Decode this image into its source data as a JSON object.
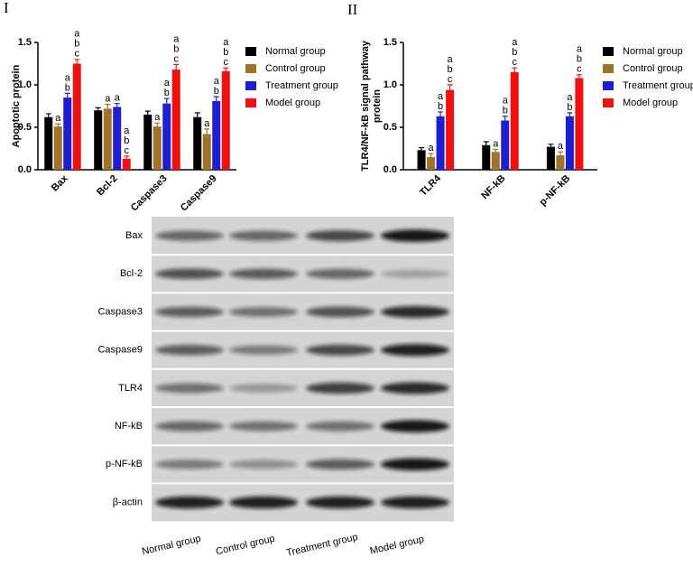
{
  "chart_data": [
    {
      "type": "bar",
      "panel": "I",
      "ylabel": [
        "Apoptotic protein"
      ],
      "categories": [
        "Bax",
        "Bcl-2",
        "Caspase3",
        "Caspase9"
      ],
      "ylim": [
        0,
        1.5
      ],
      "yticks": [
        {
          "value": 0,
          "label": "0.0"
        },
        {
          "value": 0.5,
          "label": "0.5"
        },
        {
          "value": 1,
          "label": "1.0"
        },
        {
          "value": 1.5,
          "label": "1.5"
        }
      ],
      "series": [
        {
          "name": "Normal group",
          "color": "#000000",
          "values": [
            0.62,
            0.7,
            0.65,
            0.62
          ],
          "errors": [
            0.04,
            0.03,
            0.04,
            0.05
          ],
          "letters": [
            null,
            null,
            null,
            null
          ]
        },
        {
          "name": "Control group",
          "color": "#a0732a",
          "values": [
            0.51,
            0.72,
            0.51,
            0.42
          ],
          "errors": [
            0.03,
            0.05,
            0.04,
            0.06
          ],
          "letters": [
            [
              "a"
            ],
            [
              "a"
            ],
            [
              "a"
            ],
            [
              "a"
            ]
          ]
        },
        {
          "name": "Treatment group",
          "color": "#1f1fd0",
          "values": [
            0.85,
            0.74,
            0.78,
            0.81
          ],
          "errors": [
            0.05,
            0.04,
            0.06,
            0.05
          ],
          "letters": [
            [
              "a",
              "b"
            ],
            [
              "a"
            ],
            [
              "a",
              "b"
            ],
            [
              "a",
              "b"
            ]
          ]
        },
        {
          "name": "Model group",
          "color": "#f01010",
          "values": [
            1.25,
            0.13,
            1.18,
            1.16
          ],
          "errors": [
            0.05,
            0.03,
            0.06,
            0.04
          ],
          "letters": [
            [
              "a",
              "b",
              "c"
            ],
            [
              "a",
              "b",
              "c"
            ],
            [
              "a",
              "b",
              "c"
            ],
            [
              "a",
              "b",
              "c"
            ]
          ]
        }
      ]
    },
    {
      "type": "bar",
      "panel": "II",
      "ylabel": [
        "TLR4/NF-kB signal pathway",
        "protein"
      ],
      "categories": [
        "TLR4",
        "NF-kB",
        "p-NF-kB"
      ],
      "ylim": [
        0,
        1.5
      ],
      "yticks": [
        {
          "value": 0,
          "label": "0.0"
        },
        {
          "value": 0.5,
          "label": "0.5"
        },
        {
          "value": 1,
          "label": "1.0"
        },
        {
          "value": 1.5,
          "label": "1.5"
        }
      ],
      "series": [
        {
          "name": "Normal group",
          "color": "#000000",
          "values": [
            0.23,
            0.29,
            0.27
          ],
          "errors": [
            0.03,
            0.04,
            0.03
          ],
          "letters": [
            null,
            null,
            null
          ]
        },
        {
          "name": "Control group",
          "color": "#a0732a",
          "values": [
            0.15,
            0.21,
            0.17
          ],
          "errors": [
            0.04,
            0.03,
            0.04
          ],
          "letters": [
            [
              "a"
            ],
            [
              "a"
            ],
            [
              "a"
            ]
          ]
        },
        {
          "name": "Treatment group",
          "color": "#1f1fd0",
          "values": [
            0.63,
            0.58,
            0.63
          ],
          "errors": [
            0.05,
            0.05,
            0.04
          ],
          "letters": [
            [
              "a",
              "b"
            ],
            [
              "a",
              "b"
            ],
            [
              "a",
              "b"
            ]
          ]
        },
        {
          "name": "Model group",
          "color": "#f01010",
          "values": [
            0.94,
            1.15,
            1.08
          ],
          "errors": [
            0.06,
            0.05,
            0.04
          ],
          "letters": [
            [
              "a",
              "b",
              "c"
            ],
            [
              "a",
              "b",
              "c"
            ],
            [
              "a",
              "b",
              "c"
            ]
          ]
        }
      ]
    }
  ],
  "blot": {
    "rows": [
      "Bax",
      "Bcl-2",
      "Caspase3",
      "Caspase9",
      "TLR4",
      "NF-kB",
      "p-NF-kB",
      "β-actin"
    ],
    "columns": [
      "Normal group",
      "Control group",
      "Treatment group",
      "Model group"
    ]
  }
}
